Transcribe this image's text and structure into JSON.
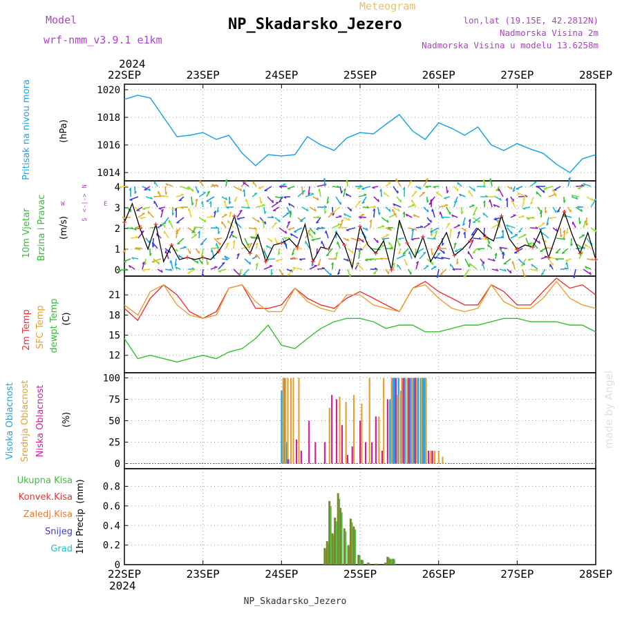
{
  "header": {
    "model_label": "Model",
    "model_name": "wrf-nmm_v3.9.1  e1km",
    "product": "Meteogram",
    "station": "NP_Skadarsko_Jezero",
    "coords": "lon,lat (19.15E, 42.2812N)",
    "elevation": "Nadmorska Visina 2m",
    "model_elevation": "Nadmorska Visina u modelu 13.6258m",
    "watermark": "made by Angel",
    "footer_station": "NP_Skadarsko_Jezero",
    "year": "2024"
  },
  "colors": {
    "pressure": "#1aa3e8",
    "t2m": "#e83232",
    "sfc": "#e8a030",
    "dewpt": "#30c030",
    "high_cloud": "#1aa3e8",
    "mid_cloud": "#e8a030",
    "low_cloud": "#d0209a",
    "total_precip": "#3cbf3c",
    "conv_precip": "#e83232",
    "frozen_precip": "#e87a30",
    "snow": "#3a3ae0",
    "graupel": "#20c0c0",
    "wind_label": "#30c030",
    "compass": "#b040c8",
    "header_purple": "#b040c8",
    "header_orange": "#f0c060"
  },
  "chart_data": [
    {
      "type": "line",
      "name": "pressure",
      "ylabel_main": "Pritisak na nivou mora",
      "ylabel_unit": "(hPa)",
      "yticks": [
        1014,
        1016,
        1018,
        1020
      ],
      "ylim": [
        1013.4,
        1020.4
      ],
      "x_days": [
        0,
        0.17,
        0.33,
        0.5,
        0.67,
        0.83,
        1,
        1.17,
        1.33,
        1.5,
        1.67,
        1.83,
        2,
        2.17,
        2.33,
        2.5,
        2.67,
        2.83,
        3,
        3.17,
        3.33,
        3.5,
        3.67,
        3.83,
        4,
        4.17,
        4.33,
        4.5,
        4.67,
        4.83,
        5,
        5.17,
        5.33,
        5.5,
        5.67,
        5.83,
        6
      ],
      "values": [
        1019.3,
        1019.6,
        1019.4,
        1018.0,
        1016.6,
        1016.7,
        1016.9,
        1016.4,
        1016.7,
        1015.4,
        1014.5,
        1015.3,
        1015.2,
        1015.3,
        1016.6,
        1016.0,
        1015.6,
        1016.5,
        1016.9,
        1016.8,
        1017.5,
        1018.2,
        1017.0,
        1016.4,
        1017.6,
        1017.2,
        1016.7,
        1017.3,
        1016.0,
        1015.6,
        1016.1,
        1015.7,
        1015.4,
        1014.6,
        1014.0,
        1015.0,
        1015.3
      ],
      "legend": []
    },
    {
      "type": "line",
      "name": "wind",
      "ylabel_main": "10m Vjetar",
      "ylabel_sub": "Brzina i Pravac",
      "ylabel_unit": "(m/s)",
      "compass_n": "N",
      "compass_s": "S",
      "compass_e": "E",
      "compass_w": "W",
      "yticks": [
        0,
        1,
        2,
        3,
        4
      ],
      "ylim": [
        -0.3,
        4.3
      ],
      "x_days": [
        0,
        0.1,
        0.2,
        0.3,
        0.4,
        0.5,
        0.6,
        0.7,
        0.8,
        0.9,
        1,
        1.1,
        1.2,
        1.3,
        1.4,
        1.5,
        1.6,
        1.7,
        1.8,
        1.9,
        2,
        2.1,
        2.2,
        2.3,
        2.4,
        2.5,
        2.6,
        2.7,
        2.8,
        2.9,
        3,
        3.1,
        3.2,
        3.3,
        3.4,
        3.5,
        3.6,
        3.7,
        3.8,
        3.9,
        4,
        4.1,
        4.2,
        4.3,
        4.4,
        4.5,
        4.6,
        4.7,
        4.8,
        4.9,
        5,
        5.1,
        5.2,
        5.3,
        5.4,
        5.5,
        5.6,
        5.7,
        5.8,
        5.9,
        6
      ],
      "values": [
        2.3,
        3.2,
        2.0,
        1.0,
        2.2,
        0.4,
        1.2,
        0.5,
        0.6,
        0.5,
        0.6,
        0.5,
        0.9,
        1.5,
        2.6,
        1.3,
        0.8,
        1.7,
        0.4,
        1.2,
        1.3,
        1.5,
        1.1,
        2.2,
        0.4,
        1.1,
        1.0,
        1.8,
        1.2,
        0.1,
        2.1,
        1.2,
        0.8,
        1.4,
        0.0,
        2.4,
        1.3,
        0.6,
        1.6,
        0.4,
        1.1,
        1.8,
        0.7,
        1.0,
        1.4,
        2.0,
        1.6,
        1.4,
        2.6,
        1.5,
        1.0,
        1.2,
        1.1,
        1.9,
        0.6,
        1.7,
        2.8,
        1.7,
        0.8,
        1.8,
        0.5
      ],
      "legend": []
    },
    {
      "type": "line",
      "name": "temperature",
      "ylabel_t2m": "2m Temp",
      "ylabel_sfc": "SFC Temp",
      "ylabel_dew": "dewpt Temp",
      "ylabel_unit": "(C)",
      "yticks": [
        12,
        15,
        18,
        21
      ],
      "ylim": [
        9.4,
        23.8
      ],
      "x_days": [
        0,
        0.17,
        0.33,
        0.5,
        0.67,
        0.83,
        1,
        1.17,
        1.33,
        1.5,
        1.67,
        1.83,
        2,
        2.17,
        2.33,
        2.5,
        2.67,
        2.83,
        3,
        3.17,
        3.33,
        3.5,
        3.67,
        3.83,
        4,
        4.17,
        4.33,
        4.5,
        4.67,
        4.83,
        5,
        5.17,
        5.33,
        5.5,
        5.67,
        5.83,
        6
      ],
      "series": [
        {
          "name": "2m Temp",
          "values": [
            19.0,
            17.2,
            20.5,
            22.5,
            21.0,
            18.5,
            17.5,
            18.5,
            22.0,
            22.5,
            19.0,
            19.0,
            19.5,
            22.0,
            20.5,
            19.5,
            19.0,
            20.5,
            21.5,
            20.5,
            19.5,
            18.5,
            22.0,
            23.0,
            21.5,
            20.5,
            19.5,
            19.5,
            22.5,
            21.5,
            19.5,
            19.5,
            21.5,
            23.5,
            22.0,
            22.5,
            21.0
          ]
        },
        {
          "name": "SFC Temp",
          "values": [
            19.5,
            18.0,
            21.5,
            22.5,
            19.5,
            18.0,
            17.5,
            18.0,
            22.0,
            22.5,
            20.0,
            18.5,
            18.5,
            22.0,
            20.0,
            19.0,
            18.5,
            21.0,
            21.0,
            19.5,
            19.0,
            18.5,
            22.0,
            22.5,
            20.5,
            19.0,
            18.5,
            19.0,
            22.5,
            20.0,
            19.0,
            19.0,
            20.5,
            23.0,
            20.5,
            19.5,
            19.0
          ]
        },
        {
          "name": "dewpt Temp",
          "values": [
            14.5,
            11.5,
            12.0,
            11.5,
            11.0,
            11.5,
            12.0,
            11.5,
            12.5,
            13.0,
            14.5,
            16.5,
            13.5,
            13.0,
            14.5,
            16.0,
            17.0,
            17.5,
            17.5,
            17.0,
            16.0,
            16.5,
            16.5,
            15.5,
            15.5,
            16.0,
            16.5,
            16.5,
            17.0,
            17.5,
            17.5,
            17.0,
            17.0,
            17.0,
            16.5,
            16.5,
            15.5
          ]
        }
      ],
      "legend": []
    },
    {
      "type": "bar",
      "name": "cloud",
      "ylabel_high": "Visoka Oblacnost",
      "ylabel_mid": "Srednja Oblacnost",
      "ylabel_low": "Niska Oblacnost",
      "ylabel_unit": "(%)",
      "yticks": [
        0,
        25,
        50,
        75,
        100
      ],
      "ylim": [
        -6,
        106
      ],
      "series": [
        {
          "name": "Visoka Oblacnost",
          "x_days": [
            2.0,
            2.03,
            2.06,
            2.09,
            3.38,
            3.41,
            3.43,
            3.46,
            3.49,
            3.52,
            3.57,
            3.6,
            3.63,
            3.65,
            3.68,
            3.71,
            3.74,
            3.77,
            3.8,
            3.82
          ],
          "values": [
            85,
            100,
            25,
            5,
            75,
            100,
            100,
            100,
            100,
            85,
            100,
            100,
            100,
            100,
            100,
            100,
            100,
            100,
            100,
            100
          ]
        },
        {
          "name": "Srednja Oblacnost",
          "x_days": [
            2.02,
            2.05,
            2.08,
            2.12,
            2.15,
            2.22,
            2.61,
            2.74,
            2.82,
            2.92,
            3.02,
            3.12,
            3.24,
            3.3,
            3.4,
            3.48,
            3.53,
            3.6,
            3.66,
            3.72,
            3.78,
            3.84,
            3.9,
            3.95,
            4.0,
            4.05
          ],
          "values": [
            100,
            100,
            100,
            100,
            100,
            100,
            65,
            78,
            72,
            80,
            70,
            100,
            55,
            100,
            100,
            80,
            100,
            100,
            100,
            100,
            100,
            100,
            15,
            15,
            15,
            8
          ]
        },
        {
          "name": "Niska Oblacnost",
          "x_days": [
            2.08,
            2.19,
            2.25,
            2.35,
            2.43,
            2.55,
            2.64,
            2.7,
            2.77,
            2.84,
            2.9,
            3.0,
            3.07,
            3.15,
            3.2,
            3.28,
            3.35,
            3.45,
            3.55,
            3.62,
            3.7,
            3.87,
            3.92
          ],
          "values": [
            5,
            28,
            15,
            50,
            25,
            25,
            80,
            75,
            45,
            10,
            20,
            50,
            25,
            25,
            55,
            15,
            75,
            100,
            100,
            100,
            100,
            15,
            15
          ]
        }
      ],
      "legend": []
    },
    {
      "type": "bar",
      "name": "precip",
      "ylabel_main": "1hr Precip",
      "ylabel_unit": "(mm)",
      "legend_total": "Ukupna Kisa",
      "legend_conv": "Konvek.Kisa",
      "legend_frozen": "Zaledj.Kisa",
      "legend_snow": "Snijeg",
      "legend_graupel": "Grad",
      "yticks": [
        0,
        0.2,
        0.4,
        0.6,
        0.8
      ],
      "ylim": [
        0,
        0.98
      ],
      "x_days": [
        2.55,
        2.58,
        2.61,
        2.65,
        2.68,
        2.72,
        2.75,
        2.8,
        2.85,
        2.88,
        2.92,
        2.98,
        3.02,
        3.1,
        3.2,
        3.32,
        3.35,
        3.38,
        3.42
      ],
      "values": [
        0.17,
        0.24,
        0.65,
        0.32,
        0.48,
        0.73,
        0.58,
        0.37,
        0.2,
        0.47,
        0.39,
        0.1,
        0.05,
        0.02,
        0.01,
        0.02,
        0.08,
        0.06,
        0.06
      ],
      "legend": []
    }
  ],
  "axis": {
    "day_labels": [
      "22SEP",
      "23SEP",
      "24SEP",
      "25SEP",
      "26SEP",
      "27SEP",
      "28SEP"
    ]
  }
}
